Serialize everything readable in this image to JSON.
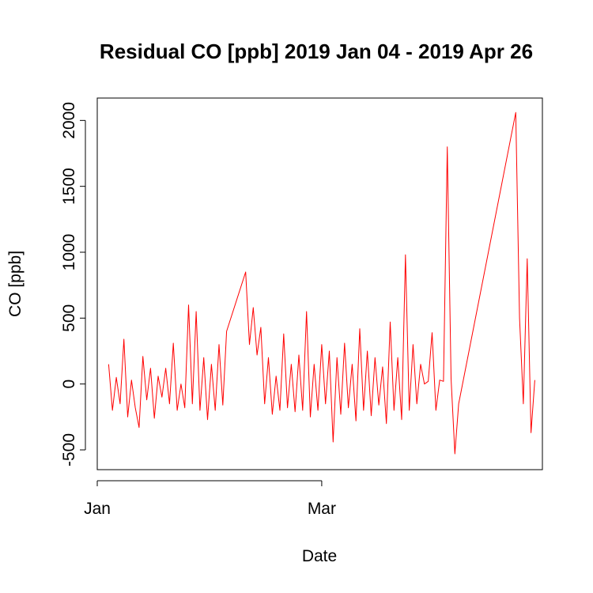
{
  "chart_data": {
    "type": "line",
    "title": "Residual CO [ppb] 2019 Jan 04 - 2019 Apr 26",
    "xlabel": "Date",
    "ylabel": "CO [ppb]",
    "x_range": [
      "2019-01-04",
      "2019-04-26"
    ],
    "xlim": [
      "2019-01-01",
      "2019-04-28"
    ],
    "ylim": [
      -650,
      2170
    ],
    "x_ticks": [
      {
        "date": "2019-01-01",
        "label": "Jan"
      },
      {
        "date": "2019-03-01",
        "label": "Mar"
      }
    ],
    "y_ticks": [
      -500,
      0,
      500,
      1000,
      1500,
      2000
    ],
    "y_tick_labels": [
      "-500",
      "0",
      "500",
      "1000",
      "1500",
      "2000"
    ],
    "grid": false,
    "legend": "none",
    "line_color": "#ff0000",
    "series": [
      {
        "points": [
          [
            "2019-01-04",
            150
          ],
          [
            "2019-01-05",
            -200
          ],
          [
            "2019-01-06",
            50
          ],
          [
            "2019-01-07",
            -150
          ],
          [
            "2019-01-08",
            340
          ],
          [
            "2019-01-09",
            -250
          ],
          [
            "2019-01-10",
            30
          ],
          [
            "2019-01-11",
            -180
          ],
          [
            "2019-01-12",
            -330
          ],
          [
            "2019-01-13",
            210
          ],
          [
            "2019-01-14",
            -120
          ],
          [
            "2019-01-15",
            120
          ],
          [
            "2019-01-16",
            -260
          ],
          [
            "2019-01-17",
            60
          ],
          [
            "2019-01-18",
            -100
          ],
          [
            "2019-01-19",
            120
          ],
          [
            "2019-01-20",
            -150
          ],
          [
            "2019-01-21",
            310
          ],
          [
            "2019-01-22",
            -200
          ],
          [
            "2019-01-23",
            0
          ],
          [
            "2019-01-24",
            -180
          ],
          [
            "2019-01-25",
            600
          ],
          [
            "2019-01-26",
            -150
          ],
          [
            "2019-01-27",
            550
          ],
          [
            "2019-01-28",
            -200
          ],
          [
            "2019-01-29",
            200
          ],
          [
            "2019-01-30",
            -270
          ],
          [
            "2019-01-31",
            150
          ],
          [
            "2019-02-01",
            -200
          ],
          [
            "2019-02-02",
            300
          ],
          [
            "2019-02-03",
            -160
          ],
          [
            "2019-02-04",
            400
          ],
          [
            "2019-02-09",
            850
          ],
          [
            "2019-02-10",
            300
          ],
          [
            "2019-02-11",
            580
          ],
          [
            "2019-02-12",
            220
          ],
          [
            "2019-02-13",
            430
          ],
          [
            "2019-02-14",
            -150
          ],
          [
            "2019-02-15",
            200
          ],
          [
            "2019-02-16",
            -230
          ],
          [
            "2019-02-17",
            60
          ],
          [
            "2019-02-18",
            -200
          ],
          [
            "2019-02-19",
            380
          ],
          [
            "2019-02-20",
            -180
          ],
          [
            "2019-02-21",
            150
          ],
          [
            "2019-02-22",
            -210
          ],
          [
            "2019-02-23",
            220
          ],
          [
            "2019-02-24",
            -200
          ],
          [
            "2019-02-25",
            550
          ],
          [
            "2019-02-26",
            -250
          ],
          [
            "2019-02-27",
            150
          ],
          [
            "2019-02-28",
            -200
          ],
          [
            "2019-03-01",
            300
          ],
          [
            "2019-03-02",
            -150
          ],
          [
            "2019-03-03",
            250
          ],
          [
            "2019-03-04",
            -440
          ],
          [
            "2019-03-05",
            200
          ],
          [
            "2019-03-06",
            -230
          ],
          [
            "2019-03-07",
            310
          ],
          [
            "2019-03-08",
            -180
          ],
          [
            "2019-03-09",
            150
          ],
          [
            "2019-03-10",
            -280
          ],
          [
            "2019-03-11",
            420
          ],
          [
            "2019-03-12",
            -200
          ],
          [
            "2019-03-13",
            250
          ],
          [
            "2019-03-14",
            -240
          ],
          [
            "2019-03-15",
            200
          ],
          [
            "2019-03-16",
            -160
          ],
          [
            "2019-03-17",
            130
          ],
          [
            "2019-03-18",
            -300
          ],
          [
            "2019-03-19",
            470
          ],
          [
            "2019-03-20",
            -200
          ],
          [
            "2019-03-21",
            200
          ],
          [
            "2019-03-22",
            -270
          ],
          [
            "2019-03-23",
            980
          ],
          [
            "2019-03-24",
            -200
          ],
          [
            "2019-03-25",
            300
          ],
          [
            "2019-03-26",
            -150
          ],
          [
            "2019-03-27",
            150
          ],
          [
            "2019-03-28",
            0
          ],
          [
            "2019-03-29",
            20
          ],
          [
            "2019-03-30",
            390
          ],
          [
            "2019-03-31",
            -200
          ],
          [
            "2019-04-01",
            30
          ],
          [
            "2019-04-02",
            20
          ],
          [
            "2019-04-03",
            1800
          ],
          [
            "2019-04-04",
            40
          ],
          [
            "2019-04-05",
            -530
          ],
          [
            "2019-04-06",
            -150
          ],
          [
            "2019-04-21",
            2060
          ],
          [
            "2019-04-22",
            500
          ],
          [
            "2019-04-23",
            -150
          ],
          [
            "2019-04-24",
            950
          ],
          [
            "2019-04-25",
            -370
          ],
          [
            "2019-04-26",
            30
          ]
        ]
      }
    ]
  }
}
